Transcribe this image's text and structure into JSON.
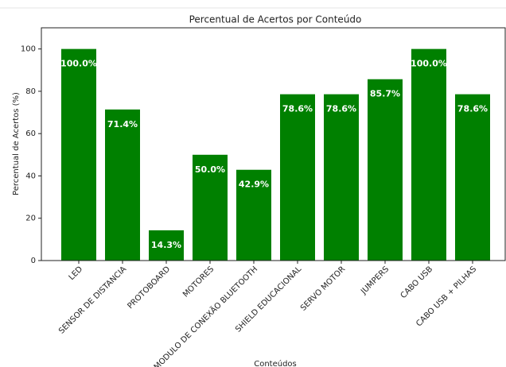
{
  "chart_data": {
    "type": "bar",
    "title": "Percentual de Acertos por Conteúdo",
    "x_label": "Conteúdos",
    "y_label": "Percentual de Acertos (%)",
    "categories": [
      "LED",
      "SENSOR DE DISTANCIA",
      "PROTOBOARD",
      "MOTORES",
      "MODULO DE CONEXÃO BLUETOOTH",
      "SHIELD EDUCACIONAL",
      "SERVO MOTOR",
      "JUMPERS",
      "CABO USB",
      "CABO USB + PILHAS"
    ],
    "values": [
      100,
      71.4,
      14.3,
      50,
      42.9,
      78.6,
      78.6,
      85.7,
      100,
      78.6
    ],
    "value_labels": [
      "100.0%",
      "71.4%",
      "14.3%",
      "50.0%",
      "42.9%",
      "78.6%",
      "78.6%",
      "85.7%",
      "100.0%",
      "78.6%"
    ],
    "color": "#008000",
    "ylim": [
      0,
      110
    ],
    "yticks": [
      0,
      20,
      40,
      60,
      80,
      100
    ],
    "grid": false
  }
}
